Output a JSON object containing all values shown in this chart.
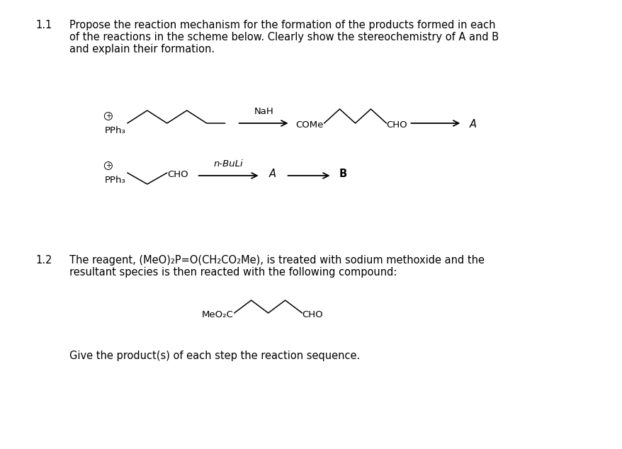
{
  "background_color": "#ffffff",
  "fs": 10.5,
  "fs_small": 9.5,
  "fig_width": 8.79,
  "fig_height": 6.34,
  "section_11_label": "1.1",
  "section_11_text_line1": "Propose the reaction mechanism for the formation of the products formed in each",
  "section_11_text_line2": "of the reactions in the scheme below. Clearly show the stereochemistry of A and B",
  "section_11_text_line3": "and explain their formation.",
  "section_12_label": "1.2",
  "section_12_text_line1": "The reagent, (MeO)₂P=O(CH₂CO₂Me), is treated with sodium methoxide and the",
  "section_12_text_line2": "resultant species is then reacted with the following compound:",
  "give_product_text": "Give the product(s) of each step the reaction sequence."
}
